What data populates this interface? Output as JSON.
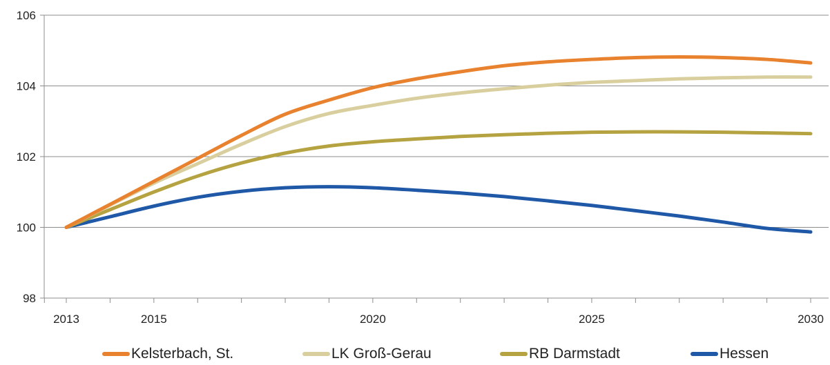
{
  "chart_data": {
    "type": "line",
    "x": [
      2013,
      2014,
      2015,
      2016,
      2017,
      2018,
      2019,
      2020,
      2021,
      2022,
      2023,
      2024,
      2025,
      2026,
      2027,
      2028,
      2029,
      2030
    ],
    "x_ticks": [
      2013,
      2015,
      2020,
      2025,
      2030
    ],
    "y_ticks": [
      98,
      100,
      102,
      104,
      106
    ],
    "ylim": [
      98,
      106
    ],
    "xlim": [
      2013,
      2030
    ],
    "grid": "horizontal",
    "legend_position": "bottom",
    "series": [
      {
        "name": "Kelsterbach, St.",
        "color": "#e8822e",
        "values": [
          100.0,
          100.65,
          101.3,
          101.95,
          102.6,
          103.2,
          103.6,
          103.95,
          104.2,
          104.4,
          104.57,
          104.68,
          104.75,
          104.8,
          104.82,
          104.8,
          104.75,
          104.65
        ]
      },
      {
        "name": "LK Groß-Gerau",
        "color": "#d9cf9e",
        "values": [
          100.0,
          100.63,
          101.25,
          101.8,
          102.35,
          102.85,
          103.22,
          103.45,
          103.65,
          103.8,
          103.92,
          104.02,
          104.1,
          104.15,
          104.2,
          104.23,
          104.25,
          104.25
        ]
      },
      {
        "name": "RB Darmstadt",
        "color": "#b5a240",
        "values": [
          100.0,
          100.5,
          101.0,
          101.45,
          101.82,
          102.1,
          102.3,
          102.42,
          102.5,
          102.57,
          102.62,
          102.66,
          102.69,
          102.7,
          102.7,
          102.69,
          102.67,
          102.65
        ]
      },
      {
        "name": "Hessen",
        "color": "#1f58a6",
        "values": [
          100.0,
          100.3,
          100.6,
          100.85,
          101.02,
          101.12,
          101.15,
          101.12,
          101.05,
          100.97,
          100.87,
          100.75,
          100.62,
          100.47,
          100.32,
          100.15,
          99.97,
          99.87
        ]
      }
    ]
  }
}
